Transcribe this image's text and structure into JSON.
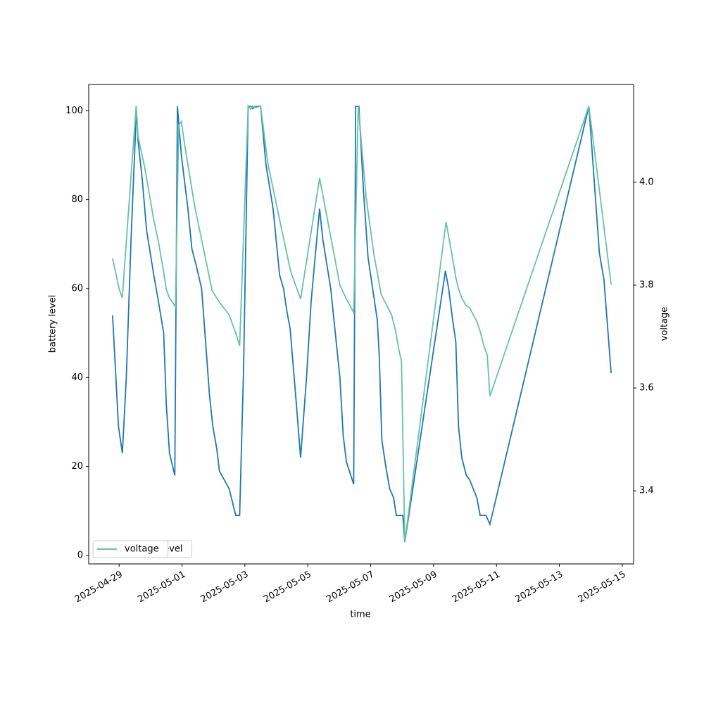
{
  "chart_data": {
    "type": "line",
    "xlabel": "time",
    "ylabel": "battery level",
    "y2label": "voltage",
    "xlim": [
      "2025-04-28T00:48",
      "2025-05-15T08:38"
    ],
    "xticks": [
      "2025-04-29",
      "2025-05-01",
      "2025-05-03",
      "2025-05-05",
      "2025-05-07",
      "2025-05-09",
      "2025-05-11",
      "2025-05-13",
      "2025-05-15"
    ],
    "ylim": [
      -1.9,
      105.9
    ],
    "yticks": [
      0,
      20,
      40,
      60,
      80,
      100
    ],
    "y2lim": [
      3.258,
      4.19
    ],
    "y2ticks": [
      3.4,
      3.6,
      3.8,
      {
        "value": 4,
        "label": "4.0"
      }
    ],
    "legend": "lower left",
    "series": [
      {
        "name": "battery level",
        "color": "#1f77b4",
        "axis": "y",
        "x": [
          "2025-04-28T19:00",
          "2025-04-28T23:30",
          "2025-04-29T02:30",
          "2025-04-29T05:30",
          "2025-04-29T09:00",
          "2025-04-29T12:30",
          "2025-04-29T13:00",
          "2025-04-29T14:30",
          "2025-04-29T17:30",
          "2025-04-29T21:00",
          "2025-04-30T02:30",
          "2025-04-30T05:30",
          "2025-04-30T10:00",
          "2025-04-30T12:00",
          "2025-04-30T14:30",
          "2025-04-30T18:30",
          "2025-04-30T20:30",
          "2025-04-30T23:30",
          "2025-05-01T04:30",
          "2025-05-01T07:30",
          "2025-05-01T11:00",
          "2025-05-01T15:00",
          "2025-05-01T18:30",
          "2025-05-01T21:00",
          "2025-05-01T23:30",
          "2025-05-02T02:30",
          "2025-05-02T04:30",
          "2025-05-02T12:00",
          "2025-05-02T17:00",
          "2025-05-02T20:00",
          "2025-05-02T23:00",
          "2025-05-03T02:30",
          "2025-05-03T04:30",
          "2025-05-03T06:00",
          "2025-05-03T08:00",
          "2025-05-03T12:00",
          "2025-05-03T16:00",
          "2025-05-03T21:30",
          "2025-05-04T02:30",
          "2025-05-04T05:30",
          "2025-05-04T08:00",
          "2025-05-04T10:30",
          "2025-05-04T15:00",
          "2025-05-04T18:30",
          "2025-05-04T23:00",
          "2025-05-05T02:30",
          "2025-05-05T06:30",
          "2025-05-05T09:00",
          "2025-05-05T11:30",
          "2025-05-05T17:30",
          "2025-05-06T00:30",
          "2025-05-06T03:00",
          "2025-05-06T05:30",
          "2025-05-06T11:00",
          "2025-05-06T12:30",
          "2025-05-06T15:00",
          "2025-05-06T18:30",
          "2025-05-06T22:00",
          "2025-05-07T01:30",
          "2025-05-07T05:00",
          "2025-05-07T06:30",
          "2025-05-07T08:30",
          "2025-05-07T11:30",
          "2025-05-07T14:30",
          "2025-05-07T17:30",
          "2025-05-07T19:30",
          "2025-05-08T00:30",
          "2025-05-08T02:00",
          "2025-05-09T09:00",
          "2025-05-09T11:30",
          "2025-05-09T14:30",
          "2025-05-09T17:00",
          "2025-05-09T19:00",
          "2025-05-09T21:30",
          "2025-05-10T01:00",
          "2025-05-10T03:30",
          "2025-05-10T09:00",
          "2025-05-10T11:30",
          "2025-05-10T16:00",
          "2025-05-10T19:00",
          "2025-05-13T22:30",
          "2025-05-14T06:30",
          "2025-05-14T10:00",
          "2025-05-14T15:30"
        ],
        "values": [
          54,
          29,
          23,
          40,
          70,
          95,
          101,
          93,
          85,
          73,
          63,
          58,
          50,
          34,
          23,
          18,
          101,
          90,
          78,
          69,
          65,
          60,
          46,
          36,
          29,
          24,
          19,
          15,
          9,
          9,
          42,
          101,
          101,
          100.5,
          101,
          101,
          88,
          78,
          63,
          60,
          55,
          51,
          35,
          22,
          40,
          57,
          70,
          78,
          71,
          60,
          40,
          27,
          21,
          16,
          101,
          101,
          82,
          67,
          60,
          53,
          45,
          26,
          20,
          15,
          13,
          9,
          9,
          3,
          64,
          60,
          53,
          48,
          29,
          22,
          18,
          17,
          13,
          9,
          9,
          7,
          101,
          68,
          62,
          41
        ]
      },
      {
        "name": "voltage",
        "color": "#66c2a5",
        "axis": "y2",
        "x": [
          "2025-04-28T19:00",
          "2025-04-29T00:00",
          "2025-04-29T02:30",
          "2025-04-29T06:00",
          "2025-04-29T13:00",
          "2025-04-29T14:30",
          "2025-04-29T19:30",
          "2025-04-30T02:30",
          "2025-04-30T06:00",
          "2025-04-30T10:00",
          "2025-04-30T12:00",
          "2025-04-30T14:30",
          "2025-04-30T19:00",
          "2025-04-30T21:30",
          "2025-04-30T23:30",
          "2025-05-01T02:00",
          "2025-05-01T09:30",
          "2025-05-01T23:00",
          "2025-05-02T04:30",
          "2025-05-02T12:00",
          "2025-05-02T17:00",
          "2025-05-02T20:00",
          "2025-05-03T02:30",
          "2025-05-03T04:30",
          "2025-05-03T06:00",
          "2025-05-03T08:00",
          "2025-05-03T12:00",
          "2025-05-03T17:30",
          "2025-05-04T04:30",
          "2025-05-04T11:00",
          "2025-05-04T18:30",
          "2025-05-05T09:00",
          "2025-05-06T00:30",
          "2025-05-06T05:30",
          "2025-05-06T11:00",
          "2025-05-06T14:30",
          "2025-05-06T20:30",
          "2025-05-07T02:30",
          "2025-05-07T08:00",
          "2025-05-07T16:00",
          "2025-05-07T19:00",
          "2025-05-07T21:30",
          "2025-05-07T23:30",
          "2025-05-08T02:00",
          "2025-05-09T09:30",
          "2025-05-09T14:30",
          "2025-05-09T17:00",
          "2025-05-09T19:00",
          "2025-05-09T21:30",
          "2025-05-10T01:00",
          "2025-05-10T03:30",
          "2025-05-10T09:00",
          "2025-05-10T11:30",
          "2025-05-10T14:30",
          "2025-05-10T17:00",
          "2025-05-10T19:00",
          "2025-05-13T22:30",
          "2025-05-14T15:30"
        ],
        "values": [
          3.852,
          3.793,
          3.775,
          3.903,
          4.148,
          4.088,
          4.029,
          3.926,
          3.885,
          3.825,
          3.792,
          3.775,
          3.758,
          4.111,
          4.118,
          4.074,
          3.956,
          3.789,
          3.767,
          3.742,
          3.707,
          3.682,
          4.148,
          4.142,
          4.148,
          4.145,
          4.148,
          4.037,
          3.903,
          3.826,
          3.773,
          4.008,
          3.8,
          3.773,
          3.747,
          4.148,
          3.971,
          3.859,
          3.782,
          3.742,
          3.711,
          3.674,
          3.652,
          3.301,
          3.923,
          3.852,
          3.815,
          3.793,
          3.775,
          3.76,
          3.756,
          3.729,
          3.71,
          3.681,
          3.663,
          3.584,
          4.148,
          3.801
        ]
      }
    ]
  }
}
